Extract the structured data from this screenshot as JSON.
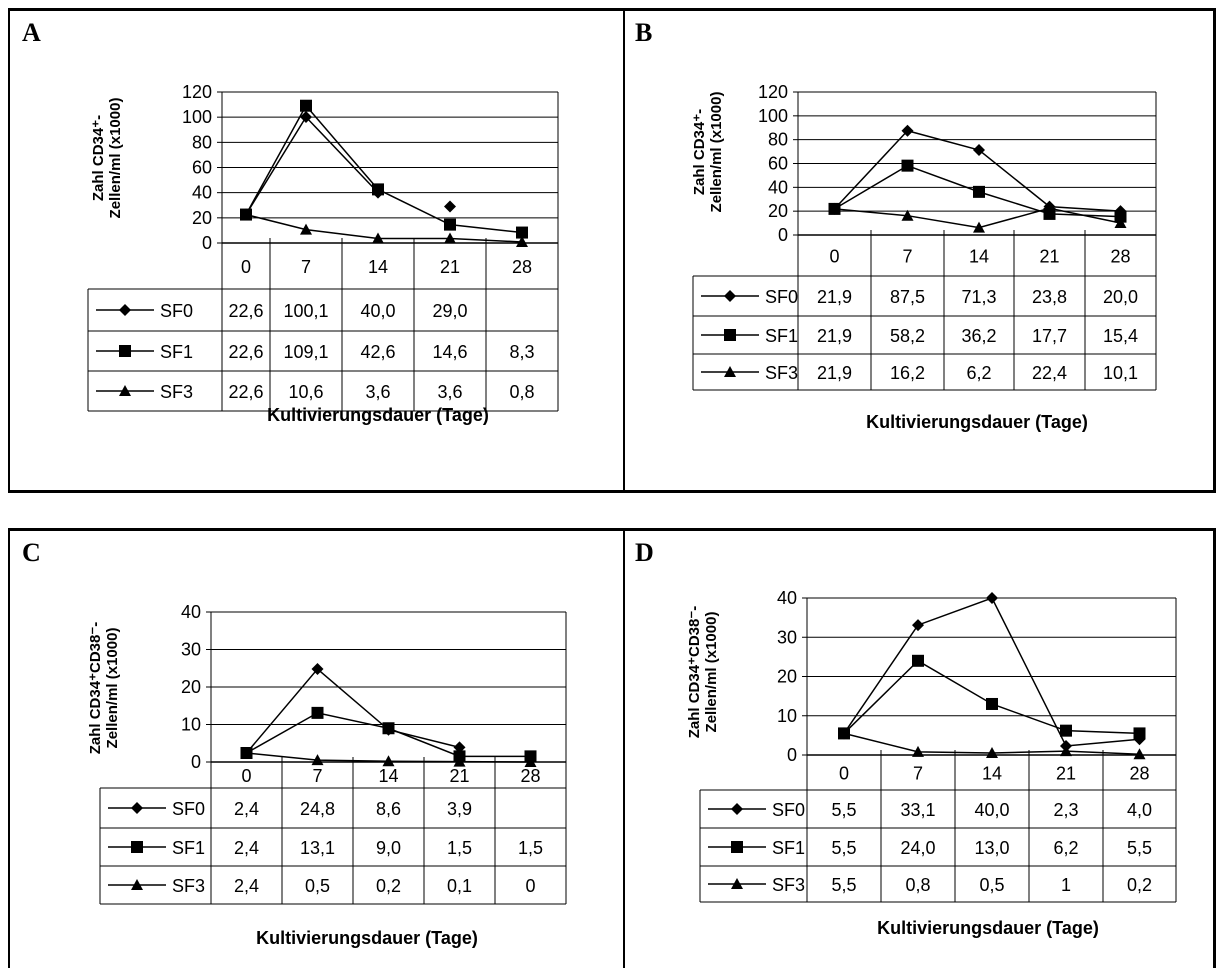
{
  "panels": [
    {
      "letter": "A",
      "y_label_line1": "Zahl CD34⁺-",
      "y_label_line2": "Zellen/ml (x1000)",
      "x_label": "Kultivierungsdauer (Tage)"
    },
    {
      "letter": "B",
      "y_label_line1": "Zahl CD34⁺-",
      "y_label_line2": "Zellen/ml (x1000)",
      "x_label": "Kultivierungsdauer (Tage)"
    },
    {
      "letter": "C",
      "y_label_line1": "Zahl CD34⁺CD38⁻-",
      "y_label_line2": "Zellen/ml (x1000)",
      "x_label": "Kultivierungsdauer (Tage)"
    },
    {
      "letter": "D",
      "y_label_line1": "Zahl CD34⁺CD38⁻-",
      "y_label_line2": "Zellen/ml (x1000)",
      "x_label": "Kultivierungsdauer (Tage)"
    }
  ],
  "chart_data": [
    {
      "type": "line",
      "x": [
        "0",
        "7",
        "14",
        "21",
        "28"
      ],
      "ylim": [
        0,
        120
      ],
      "yticks": [
        0,
        20,
        40,
        60,
        80,
        100,
        120
      ],
      "grid": true,
      "series": [
        {
          "name": "SF0",
          "marker": "diamond",
          "values": [
            22.6,
            100.1,
            40.0,
            29.0,
            null
          ],
          "labels": [
            "22,6",
            "100,1",
            "40,0",
            "29,0",
            ""
          ],
          "dangling_point_index": 3
        },
        {
          "name": "SF1",
          "marker": "square",
          "values": [
            22.6,
            109.1,
            42.6,
            14.6,
            8.3
          ],
          "labels": [
            "22,6",
            "109,1",
            "42,6",
            "14,6",
            "8,3"
          ]
        },
        {
          "name": "SF3",
          "marker": "triangle",
          "values": [
            22.6,
            10.6,
            3.6,
            3.6,
            0.8
          ],
          "labels": [
            "22,6",
            "10,6",
            "3,6",
            "3,6",
            "0,8"
          ]
        }
      ]
    },
    {
      "type": "line",
      "x": [
        "0",
        "7",
        "14",
        "21",
        "28"
      ],
      "ylim": [
        0,
        120
      ],
      "yticks": [
        0,
        20,
        40,
        60,
        80,
        100,
        120
      ],
      "grid": true,
      "series": [
        {
          "name": "SF0",
          "marker": "diamond",
          "values": [
            21.9,
            87.5,
            71.3,
            23.8,
            20.0
          ],
          "labels": [
            "21,9",
            "87,5",
            "71,3",
            "23,8",
            "20,0"
          ]
        },
        {
          "name": "SF1",
          "marker": "square",
          "values": [
            21.9,
            58.2,
            36.2,
            17.7,
            15.4
          ],
          "labels": [
            "21,9",
            "58,2",
            "36,2",
            "17,7",
            "15,4"
          ]
        },
        {
          "name": "SF3",
          "marker": "triangle",
          "values": [
            21.9,
            16.2,
            6.2,
            22.4,
            10.1
          ],
          "labels": [
            "21,9",
            "16,2",
            "6,2",
            "22,4",
            "10,1"
          ]
        }
      ]
    },
    {
      "type": "line",
      "x": [
        "0",
        "7",
        "14",
        "21",
        "28"
      ],
      "ylim": [
        0,
        40
      ],
      "yticks": [
        0,
        10,
        20,
        30,
        40
      ],
      "grid": true,
      "series": [
        {
          "name": "SF0",
          "marker": "diamond",
          "values": [
            2.4,
            24.8,
            8.6,
            3.9,
            null
          ],
          "labels": [
            "2,4",
            "24,8",
            "8,6",
            "3,9",
            ""
          ]
        },
        {
          "name": "SF1",
          "marker": "square",
          "values": [
            2.4,
            13.1,
            9.0,
            1.5,
            1.5
          ],
          "labels": [
            "2,4",
            "13,1",
            "9,0",
            "1,5",
            "1,5"
          ]
        },
        {
          "name": "SF3",
          "marker": "triangle",
          "values": [
            2.4,
            0.5,
            0.2,
            0.1,
            0
          ],
          "labels": [
            "2,4",
            "0,5",
            "0,2",
            "0,1",
            "0"
          ]
        }
      ]
    },
    {
      "type": "line",
      "x": [
        "0",
        "7",
        "14",
        "21",
        "28"
      ],
      "ylim": [
        0,
        40
      ],
      "yticks": [
        0,
        10,
        20,
        30,
        40
      ],
      "grid": true,
      "series": [
        {
          "name": "SF0",
          "marker": "diamond",
          "values": [
            5.5,
            33.1,
            40.0,
            2.3,
            4.0
          ],
          "labels": [
            "5,5",
            "33,1",
            "40,0",
            "2,3",
            "4,0"
          ]
        },
        {
          "name": "SF1",
          "marker": "square",
          "values": [
            5.5,
            24.0,
            13.0,
            6.2,
            5.5
          ],
          "labels": [
            "5,5",
            "24,0",
            "13,0",
            "6,2",
            "5,5"
          ]
        },
        {
          "name": "SF3",
          "marker": "triangle",
          "values": [
            5.5,
            0.8,
            0.5,
            1,
            0.2
          ],
          "labels": [
            "5,5",
            "0,8",
            "0,5",
            "1",
            "0,2"
          ]
        }
      ]
    }
  ]
}
